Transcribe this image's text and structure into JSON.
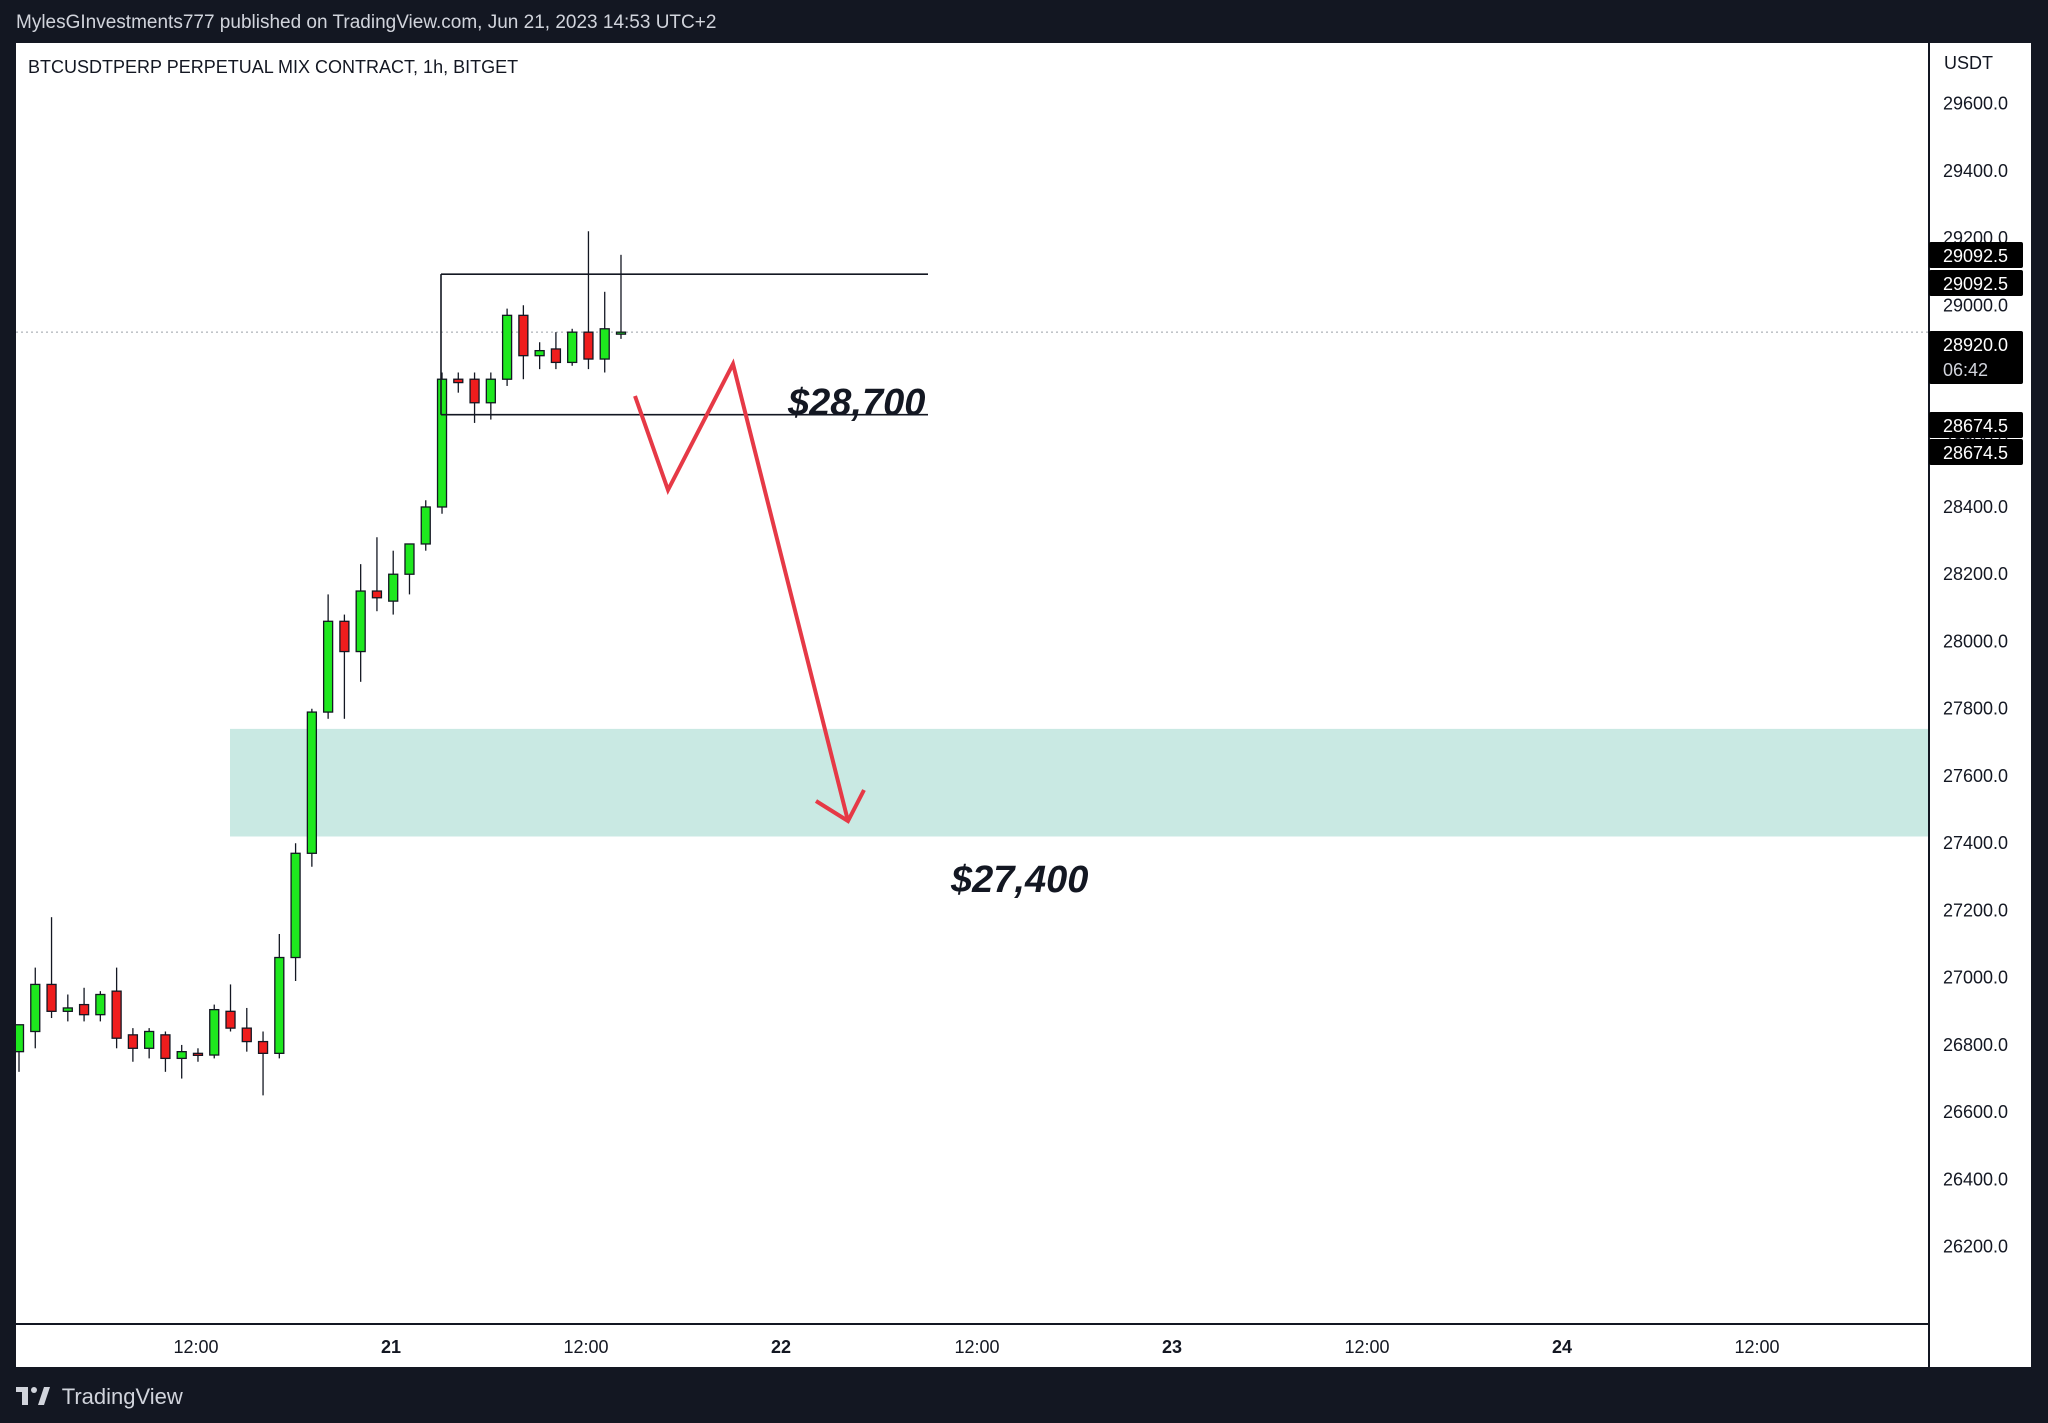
{
  "header": {
    "publisher_line": "MylesGInvestments777 published on TradingView.com, Jun 21, 2023 14:53 UTC+2"
  },
  "footer": {
    "brand": "TradingView"
  },
  "chart_data": {
    "type": "candlestick",
    "title": "BTCUSDTPERP PERPETUAL MIX CONTRACT, 1h, BITGET",
    "currency": "USDT",
    "ylim": [
      25970,
      29780
    ],
    "y_ticks": [
      "29600.0",
      "29400.0",
      "29200.0",
      "29000.0",
      "28800.0",
      "28600.0",
      "28400.0",
      "28200.0",
      "28000.0",
      "27800.0",
      "27600.0",
      "27400.0",
      "27200.0",
      "27000.0",
      "26800.0",
      "26600.0",
      "26400.0",
      "26200.0"
    ],
    "x_ticks": [
      "12:00",
      "21",
      "12:00",
      "22",
      "12:00",
      "23",
      "12:00",
      "24",
      "12:00"
    ],
    "price_labels": [
      {
        "text": "29092.5",
        "value": 29092.5
      },
      {
        "text": "29092.5",
        "value": 29092.5
      },
      {
        "text": "28920.0",
        "value": 28920.0,
        "sub": "06:42"
      },
      {
        "text": "28674.5",
        "value": 28674.5
      },
      {
        "text": "28674.5",
        "value": 28674.5
      }
    ],
    "last_price": 28920.0,
    "candles": [
      {
        "o": 26780,
        "h": 26850,
        "l": 26720,
        "c": 26860
      },
      {
        "o": 26840,
        "h": 27030,
        "l": 26790,
        "c": 26980
      },
      {
        "o": 26980,
        "h": 27180,
        "l": 26880,
        "c": 26900
      },
      {
        "o": 26900,
        "h": 26950,
        "l": 26870,
        "c": 26910
      },
      {
        "o": 26920,
        "h": 26970,
        "l": 26870,
        "c": 26890
      },
      {
        "o": 26890,
        "h": 26960,
        "l": 26870,
        "c": 26950
      },
      {
        "o": 26960,
        "h": 27030,
        "l": 26790,
        "c": 26820
      },
      {
        "o": 26830,
        "h": 26850,
        "l": 26750,
        "c": 26790
      },
      {
        "o": 26790,
        "h": 26850,
        "l": 26760,
        "c": 26840
      },
      {
        "o": 26830,
        "h": 26840,
        "l": 26720,
        "c": 26760
      },
      {
        "o": 26760,
        "h": 26800,
        "l": 26700,
        "c": 26780
      },
      {
        "o": 26775,
        "h": 26790,
        "l": 26750,
        "c": 26770
      },
      {
        "o": 26770,
        "h": 26920,
        "l": 26760,
        "c": 26905
      },
      {
        "o": 26900,
        "h": 26980,
        "l": 26840,
        "c": 26850
      },
      {
        "o": 26850,
        "h": 26910,
        "l": 26780,
        "c": 26810
      },
      {
        "o": 26810,
        "h": 26840,
        "l": 26650,
        "c": 26775
      },
      {
        "o": 26775,
        "h": 27130,
        "l": 26760,
        "c": 27060
      },
      {
        "o": 27060,
        "h": 27400,
        "l": 26990,
        "c": 27370
      },
      {
        "o": 27370,
        "h": 27800,
        "l": 27330,
        "c": 27790
      },
      {
        "o": 27790,
        "h": 28140,
        "l": 27770,
        "c": 28060
      },
      {
        "o": 28060,
        "h": 28080,
        "l": 27770,
        "c": 27970
      },
      {
        "o": 27970,
        "h": 28230,
        "l": 27880,
        "c": 28150
      },
      {
        "o": 28150,
        "h": 28310,
        "l": 28090,
        "c": 28130
      },
      {
        "o": 28120,
        "h": 28270,
        "l": 28080,
        "c": 28200
      },
      {
        "o": 28200,
        "h": 28260,
        "l": 28140,
        "c": 28290
      },
      {
        "o": 28290,
        "h": 28420,
        "l": 28270,
        "c": 28400
      },
      {
        "o": 28400,
        "h": 28800,
        "l": 28380,
        "c": 28780
      },
      {
        "o": 28780,
        "h": 28800,
        "l": 28740,
        "c": 28770
      },
      {
        "o": 28780,
        "h": 28800,
        "l": 28650,
        "c": 28710
      },
      {
        "o": 28710,
        "h": 28800,
        "l": 28660,
        "c": 28780
      },
      {
        "o": 28780,
        "h": 28990,
        "l": 28760,
        "c": 28970
      },
      {
        "o": 28970,
        "h": 29000,
        "l": 28780,
        "c": 28850
      },
      {
        "o": 28850,
        "h": 28890,
        "l": 28810,
        "c": 28865
      },
      {
        "o": 28870,
        "h": 28920,
        "l": 28810,
        "c": 28830
      },
      {
        "o": 28830,
        "h": 28930,
        "l": 28820,
        "c": 28920
      },
      {
        "o": 28920,
        "h": 29220,
        "l": 28810,
        "c": 28840
      },
      {
        "o": 28840,
        "h": 29040,
        "l": 28800,
        "c": 28930
      },
      {
        "o": 28920,
        "h": 29150,
        "l": 28900,
        "c": 28920
      }
    ],
    "annotations": {
      "range_top": 29092.5,
      "range_bottom": 28674.5,
      "zone_high": 27740,
      "zone_low": 27420,
      "labels": [
        {
          "text": "$28,700",
          "value": 28700
        },
        {
          "text": "$27,400",
          "value": 27400
        }
      ]
    },
    "colors": {
      "up": "#1ee81e",
      "down": "#ef1d1d",
      "zone": "#c9e9e3",
      "arrow": "#e63946",
      "frame": "#131722"
    }
  }
}
